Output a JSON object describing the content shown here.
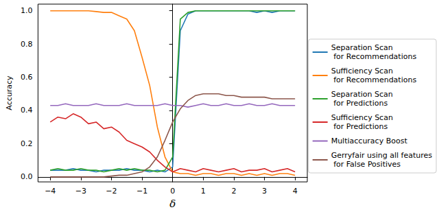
{
  "chart_data": {
    "type": "line",
    "x_label": "δ",
    "y_label": "Accuracy",
    "xlim": [
      -4.4,
      4.4
    ],
    "ylim": [
      -0.03,
      1.04
    ],
    "xticks": [
      {
        "value": -4,
        "label": "−4"
      },
      {
        "value": -3,
        "label": "−3"
      },
      {
        "value": -2,
        "label": "−2"
      },
      {
        "value": -1,
        "label": "−1"
      },
      0,
      1,
      2,
      3,
      4
    ],
    "yticks": [
      {
        "value": 0,
        "label": "0.0"
      },
      0.2,
      0.4,
      0.6,
      0.8,
      {
        "value": 1,
        "label": "1.0"
      }
    ],
    "grid": false,
    "legend": "right",
    "marker": "none",
    "line_style": "solid",
    "x": [
      -4,
      -3.75,
      -3.5,
      -3.25,
      -3,
      -2.75,
      -2.5,
      -2.25,
      -2,
      -1.75,
      -1.5,
      -1.25,
      -1,
      -0.75,
      -0.5,
      -0.25,
      0,
      0.25,
      0.5,
      0.75,
      1,
      1.25,
      1.5,
      1.75,
      2,
      2.25,
      2.5,
      2.75,
      3,
      3.25,
      3.5,
      3.75,
      4
    ],
    "series": [
      {
        "name": "Separation Scan\n for Recommendations",
        "color": "#1f77b4",
        "values": [
          0.04,
          0.04,
          0.04,
          0.05,
          0.04,
          0.04,
          0.03,
          0.04,
          0.04,
          0.04,
          0.05,
          0.04,
          0.04,
          0.03,
          0.04,
          0.03,
          0.06,
          0.88,
          0.98,
          1.0,
          1.0,
          1.0,
          1.0,
          1.0,
          1.0,
          1.0,
          1.0,
          0.99,
          1.0,
          0.99,
          1.0,
          1.0,
          1.0
        ]
      },
      {
        "name": "Sufficiency Scan\n for Recommendations",
        "color": "#ff7f0e",
        "values": [
          1.0,
          1.0,
          1.0,
          1.0,
          1.0,
          1.0,
          0.995,
          0.99,
          0.99,
          0.97,
          0.95,
          0.88,
          0.72,
          0.55,
          0.3,
          0.12,
          0.03,
          0.02,
          0.02,
          0.01,
          0.02,
          0.02,
          0.01,
          0.02,
          0.02,
          0.01,
          0.02,
          0.01,
          0.02,
          0.01,
          0.02,
          0.02,
          0.01
        ]
      },
      {
        "name": "Separation Scan\n for Predictions",
        "color": "#2ca02c",
        "values": [
          0.04,
          0.05,
          0.04,
          0.04,
          0.05,
          0.04,
          0.04,
          0.03,
          0.04,
          0.05,
          0.04,
          0.05,
          0.04,
          0.04,
          0.03,
          0.04,
          0.12,
          0.95,
          0.99,
          1.0,
          1.0,
          1.0,
          1.0,
          1.0,
          1.0,
          1.0,
          1.0,
          1.0,
          1.0,
          1.0,
          1.0,
          1.0,
          1.0
        ]
      },
      {
        "name": "Sufficiency Scan\n for Predictions",
        "color": "#d62728",
        "values": [
          0.33,
          0.36,
          0.35,
          0.38,
          0.36,
          0.32,
          0.33,
          0.29,
          0.3,
          0.27,
          0.22,
          0.2,
          0.18,
          0.15,
          0.1,
          0.06,
          0.03,
          0.05,
          0.04,
          0.03,
          0.05,
          0.04,
          0.03,
          0.04,
          0.05,
          0.03,
          0.04,
          0.04,
          0.05,
          0.03,
          0.04,
          0.05,
          0.03
        ]
      },
      {
        "name": "Multiaccuracy Boost",
        "color": "#9467bd",
        "values": [
          0.43,
          0.43,
          0.44,
          0.43,
          0.43,
          0.43,
          0.44,
          0.43,
          0.43,
          0.43,
          0.44,
          0.43,
          0.43,
          0.43,
          0.43,
          0.44,
          0.43,
          0.43,
          0.42,
          0.43,
          0.44,
          0.43,
          0.43,
          0.44,
          0.43,
          0.43,
          0.44,
          0.43,
          0.43,
          0.44,
          0.43,
          0.43,
          0.43
        ]
      },
      {
        "name": "Gerryfair using all features\n for False Positives",
        "color": "#8c564b",
        "values": [
          0,
          0,
          0,
          0,
          0,
          0,
          0,
          0,
          0.005,
          0.01,
          0.01,
          0.02,
          0.03,
          0.06,
          0.12,
          0.22,
          0.33,
          0.41,
          0.46,
          0.49,
          0.5,
          0.5,
          0.5,
          0.49,
          0.49,
          0.48,
          0.48,
          0.48,
          0.48,
          0.47,
          0.47,
          0.47,
          0.47
        ]
      }
    ]
  }
}
